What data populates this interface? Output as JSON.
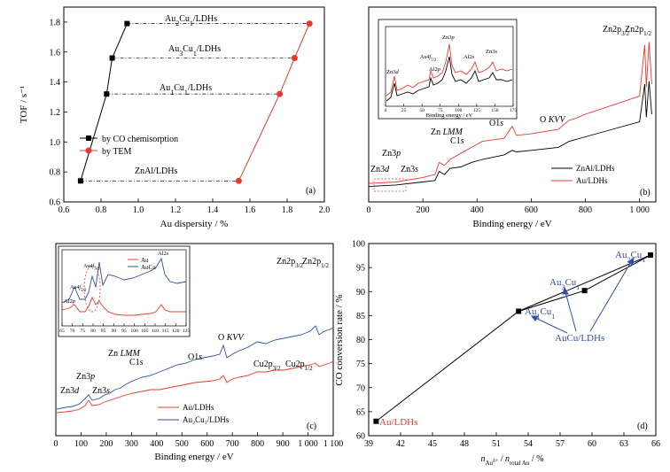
{
  "chart_data": [
    {
      "type": "scatter",
      "panel": "(a)",
      "xlabel": "Au dispersity / %",
      "ylabel": "TOF / s⁻¹",
      "xlim": [
        0.6,
        2.0
      ],
      "ylim": [
        0.6,
        1.9
      ],
      "xticks": [
        0.6,
        0.8,
        1.0,
        1.2,
        1.4,
        1.6,
        1.8,
        2.0
      ],
      "xtick_labels": [
        "0.6",
        "0.8",
        "1.0",
        "1.2",
        "1.4",
        "1.6",
        "1.8",
        "2.0"
      ],
      "yticks": [
        0.6,
        0.8,
        1.0,
        1.2,
        1.4,
        1.6,
        1.8
      ],
      "ytick_labels": [
        "0.6",
        "0.8",
        "1.0",
        "1.2",
        "1.4",
        "1.6",
        "1.8"
      ],
      "series": [
        {
          "name": "by CO chemisorption",
          "color": "#000000",
          "marker": "square",
          "x": [
            0.69,
            0.83,
            0.86,
            0.94
          ],
          "y": [
            0.74,
            1.32,
            1.56,
            1.79
          ]
        },
        {
          "name": "by TEM",
          "color": "#e8392f",
          "marker": "circle",
          "x": [
            1.54,
            1.76,
            1.84,
            1.92
          ],
          "y": [
            0.74,
            1.32,
            1.56,
            1.79
          ]
        }
      ],
      "annotations": [
        {
          "label_html": "Au<tspan baseline-shift='sub' font-size='8'>2</tspan>Cu<tspan baseline-shift='sub' font-size='8'>1</tspan>/LDHs",
          "x": 1.35,
          "y": 1.84
        },
        {
          "label_html": "Au<tspan baseline-shift='sub' font-size='8'>3</tspan>Cu<tspan baseline-shift='sub' font-size='8'>1</tspan>/LDHs",
          "x": 1.35,
          "y": 1.61
        },
        {
          "label_html": "Au<tspan baseline-shift='sub' font-size='8'>1</tspan>Cu<tspan baseline-shift='sub' font-size='8'>1</tspan>/LDHs",
          "x": 1.29,
          "y": 1.37
        },
        {
          "label_html": "ZnAl/LDHs",
          "x": 1.12,
          "y": 0.79
        }
      ],
      "legend_location": "center-left",
      "panel_label": "(a)"
    },
    {
      "type": "line",
      "panel": "(b)",
      "xlabel": "Binding energy / eV",
      "xlim": [
        0,
        1060
      ],
      "xticks": [
        0,
        200,
        400,
        600,
        800,
        1000
      ],
      "xtick_labels": [
        "0",
        "200",
        "400",
        "600",
        "800",
        "1 000"
      ],
      "series": [
        {
          "name": "ZnAl/LDHs",
          "color": "#000000",
          "x": [
            0,
            100,
            200,
            245,
            260,
            280,
            300,
            340,
            380,
            420,
            500,
            530,
            545,
            600,
            700,
            740,
            760,
            800,
            900,
            1000,
            1019,
            1025,
            1035,
            1045
          ],
          "y": [
            0.02,
            0.03,
            0.05,
            0.06,
            0.12,
            0.1,
            0.14,
            0.15,
            0.18,
            0.2,
            0.23,
            0.26,
            0.25,
            0.26,
            0.28,
            0.32,
            0.33,
            0.35,
            0.4,
            0.45,
            0.7,
            0.48,
            0.72,
            0.5
          ]
        },
        {
          "name": "Au/LDHs",
          "color": "#e8392f",
          "x": [
            0,
            100,
            200,
            245,
            260,
            280,
            300,
            340,
            380,
            420,
            500,
            530,
            545,
            600,
            700,
            740,
            760,
            800,
            900,
            1000,
            1019,
            1025,
            1035,
            1045
          ],
          "y": [
            0.04,
            0.05,
            0.08,
            0.1,
            0.18,
            0.16,
            0.2,
            0.24,
            0.28,
            0.32,
            0.34,
            0.42,
            0.36,
            0.37,
            0.4,
            0.46,
            0.47,
            0.5,
            0.56,
            0.62,
            0.96,
            0.68,
            0.98,
            0.7
          ]
        }
      ],
      "annotations": [
        {
          "label_html": "Zn2p<tspan baseline-shift='sub' font-size='7'>3/2</tspan>"
        },
        {
          "label_html": "Zn2p<tspan baseline-shift='sub' font-size='7'>1/2</tspan>"
        },
        {
          "label_html": "O <tspan font-style='italic'>KVV</tspan>"
        },
        {
          "label_html": "O1<tspan font-style='italic'>s</tspan>"
        },
        {
          "label_html": "Zn <tspan font-style='italic'>LMM</tspan>"
        },
        {
          "label_html": "C1<tspan font-style='italic'>s</tspan>"
        },
        {
          "label_html": "Zn3<tspan font-style='italic'>p</tspan>"
        },
        {
          "label_html": "Zn3<tspan font-style='italic'>s</tspan>"
        },
        {
          "label_html": "Zn3<tspan font-style='italic'>d</tspan>"
        }
      ],
      "inset": {
        "xlabel": "Binding energy / eV",
        "xticks": [
          0,
          25,
          50,
          75,
          100,
          125,
          150,
          175
        ],
        "xtick_labels": [
          "0",
          "25",
          "50",
          "75",
          "100",
          "125",
          "150",
          "175"
        ],
        "annotations": [
          {
            "label_html": "Zn3<tspan font-style='italic'>d</tspan>"
          },
          {
            "label_html": "Au4<tspan font-style='italic'>f</tspan><tspan baseline-shift='sub' font-size='5'>7/2</tspan>"
          },
          {
            "label_html": "Al2<tspan font-style='italic'>p</tspan>"
          },
          {
            "label_html": "Zn3<tspan font-style='italic'>p</tspan>"
          },
          {
            "label_html": "Al2<tspan font-style='italic'>s</tspan>"
          },
          {
            "label_html": "Zn3<tspan font-style='italic'>s</tspan>"
          }
        ]
      },
      "legend_location": "bottom-right",
      "panel_label": "(b)"
    },
    {
      "type": "line",
      "panel": "(c)",
      "xlabel": "Binding energy / eV",
      "xlim": [
        0,
        1100
      ],
      "xticks": [
        0,
        100,
        200,
        300,
        400,
        500,
        600,
        700,
        800,
        900,
        1000,
        1100
      ],
      "xtick_labels": [
        "0",
        "100",
        "200",
        "300",
        "400",
        "500",
        "600",
        "700",
        "800",
        "900",
        "1 000",
        "1 100"
      ],
      "series": [
        {
          "name": "Au/LDHs",
          "color": "#e8392f"
        },
        {
          "name": "Au₂Cu₁/LDHs",
          "color": "#2f4fa0"
        }
      ],
      "annotations": [
        {
          "label_html": "Zn2p<tspan baseline-shift='sub' font-size='7'>3/2</tspan>"
        },
        {
          "label_html": "Zn2p<tspan baseline-shift='sub' font-size='7'>1/2</tspan>"
        },
        {
          "label_html": "O <tspan font-style='italic'>KVV</tspan>"
        },
        {
          "label_html": "O1<tspan font-style='italic'>s</tspan>"
        },
        {
          "label_html": "Cu2p<tspan baseline-shift='sub' font-size='7'>3/2</tspan>"
        },
        {
          "label_html": "Cu2p<tspan baseline-shift='sub' font-size='7'>1/2</tspan>"
        },
        {
          "label_html": "Zn <tspan font-style='italic'>LMM</tspan>"
        },
        {
          "label_html": "C1<tspan font-style='italic'>s</tspan>"
        },
        {
          "label_html": "Zn3<tspan font-style='italic'>p</tspan>"
        },
        {
          "label_html": "Zn3<tspan font-style='italic'>s</tspan>"
        },
        {
          "label_html": "Zn3<tspan font-style='italic'>d</tspan>"
        }
      ],
      "inset": {
        "xticks": [
          65,
          70,
          75,
          80,
          85,
          90,
          95,
          100,
          105,
          110,
          115,
          120,
          125
        ],
        "xtick_labels": [
          "65",
          "70",
          "75",
          "80",
          "85",
          "90",
          "95",
          "100",
          "105",
          "110",
          "115",
          "120",
          "125"
        ],
        "legend": [
          "Au",
          "AuCu"
        ],
        "annotations": [
          {
            "label_html": "Au4<tspan font-style='italic'>f</tspan><tspan baseline-shift='sub' font-size='5'>7/2</tspan>"
          },
          {
            "label_html": "Au4<tspan font-style='italic'>f</tspan><tspan baseline-shift='sub' font-size='5'>5/2</tspan>"
          },
          {
            "label_html": "Al2<tspan font-style='italic'>p</tspan>"
          },
          {
            "label_html": "Al2<tspan font-style='italic'>s</tspan>"
          }
        ]
      },
      "legend_location": "bottom-center",
      "panel_label": "(c)"
    },
    {
      "type": "scatter",
      "panel": "(d)",
      "xlabel_html": "<tspan font-style='italic'>n</tspan><tspan baseline-shift='sub' font-size='7'>Au<tspan baseline-shift='super' font-size='6'>δ+</tspan></tspan> / <tspan font-style='italic'>n</tspan><tspan baseline-shift='sub' font-size='7'>total Au</tspan> / %",
      "ylabel": "CO conversion rate / %",
      "xlim": [
        39,
        66
      ],
      "ylim": [
        60,
        100
      ],
      "xticks": [
        39,
        42,
        45,
        48,
        51,
        54,
        57,
        60,
        63,
        66
      ],
      "xtick_labels": [
        "39",
        "42",
        "45",
        "48",
        "51",
        "54",
        "57",
        "60",
        "63",
        "66"
      ],
      "yticks": [
        60,
        65,
        70,
        75,
        80,
        85,
        90,
        95,
        100
      ],
      "ytick_labels": [
        "60",
        "65",
        "70",
        "75",
        "80",
        "85",
        "90",
        "95",
        "100"
      ],
      "series": [
        {
          "color": "#000000",
          "marker": "square",
          "x": [
            39.7,
            53.1,
            59.3,
            65.5
          ],
          "y": [
            63.0,
            85.9,
            90.2,
            97.6
          ]
        }
      ],
      "point_labels": [
        {
          "label_html": "Au/LDHs",
          "color": "#e8392f"
        },
        {
          "label_html": "Au<tspan baseline-shift='sub' font-size='8'>1</tspan>Cu<tspan baseline-shift='sub' font-size='8'>1</tspan>",
          "color": "#2f4fa0"
        },
        {
          "label_html": "Au<tspan baseline-shift='sub' font-size='8'>3</tspan>Cu<tspan baseline-shift='sub' font-size='8'>1</tspan>",
          "color": "#2f4fa0"
        },
        {
          "label_html": "Au<tspan baseline-shift='sub' font-size='8'>2</tspan>Cu<tspan baseline-shift='sub' font-size='8'>1</tspan>",
          "color": "#2f4fa0"
        },
        {
          "label_html": "AuCu/LDHs",
          "color": "#2f4fa0"
        }
      ],
      "panel_label": "(d)"
    }
  ]
}
